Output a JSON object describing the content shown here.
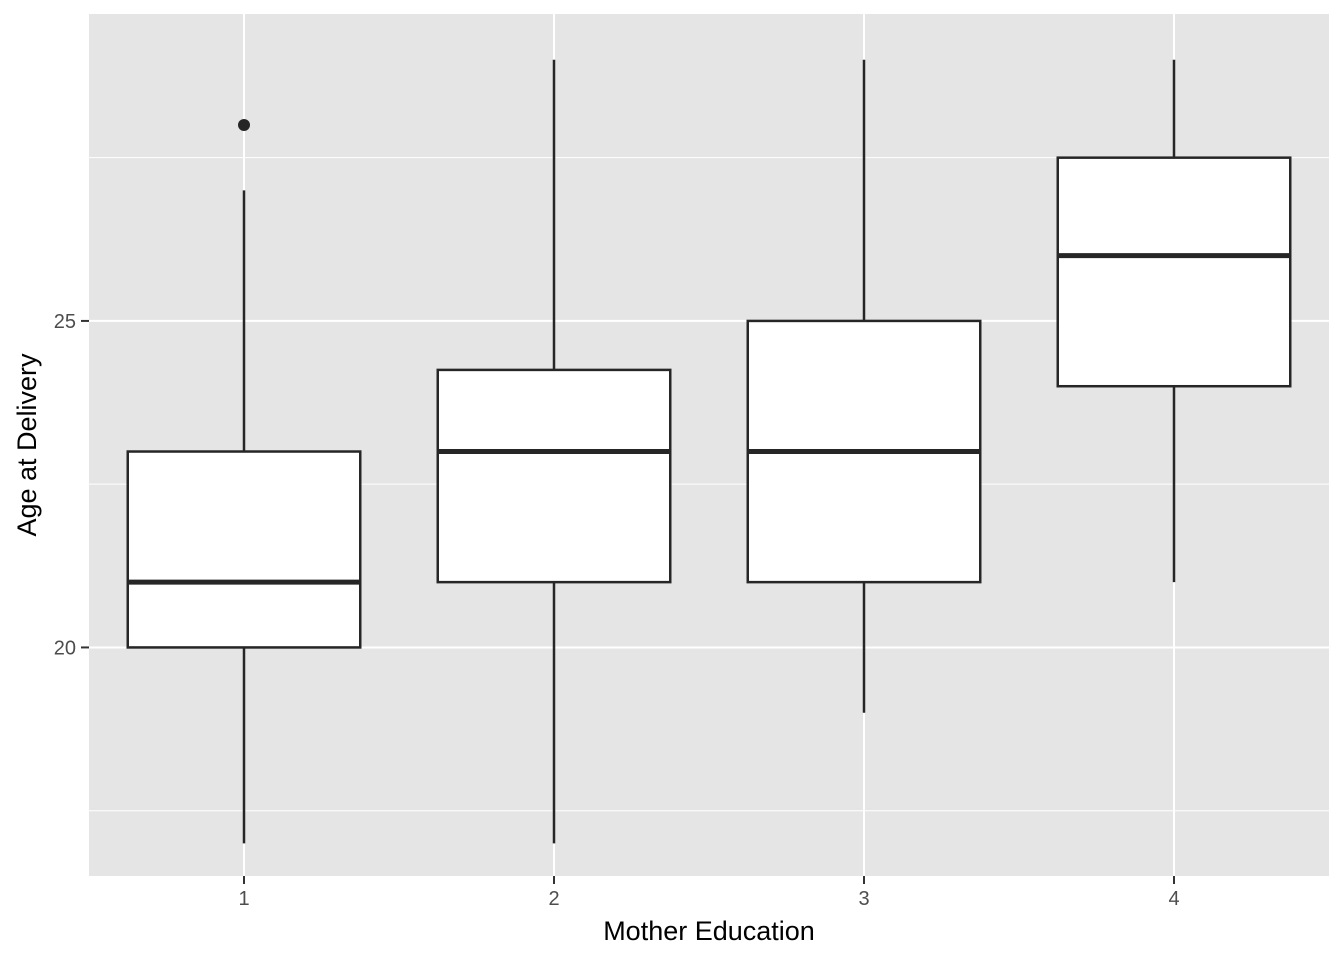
{
  "chart_data": {
    "type": "boxplot",
    "title": "",
    "xlabel": "Mother Education",
    "ylabel": "Age at Delivery",
    "categories": [
      "1",
      "2",
      "3",
      "4"
    ],
    "ylim": [
      16.5,
      29.7
    ],
    "y_ticks": [
      20,
      25
    ],
    "y_tick_labels": [
      "20",
      "25"
    ],
    "grid": true,
    "legend": "none",
    "boxes": [
      {
        "category": "1",
        "whisker_low": 17,
        "q1": 20,
        "median": 21,
        "q3": 23,
        "whisker_high": 27,
        "outliers": [
          28
        ]
      },
      {
        "category": "2",
        "whisker_low": 17,
        "q1": 21,
        "median": 23,
        "q3": 24.25,
        "whisker_high": 29,
        "outliers": []
      },
      {
        "category": "3",
        "whisker_low": 19,
        "q1": 21,
        "median": 23,
        "q3": 25,
        "whisker_high": 29,
        "outliers": []
      },
      {
        "category": "4",
        "whisker_low": 21,
        "q1": 24,
        "median": 26,
        "q3": 27.5,
        "whisker_high": 29,
        "outliers": []
      }
    ],
    "colors": {
      "panel_background": "#e5e5e5",
      "grid": "#ffffff",
      "box_fill": "#ffffff",
      "box_stroke": "#262626",
      "tick_text": "#4d4d4d"
    }
  }
}
